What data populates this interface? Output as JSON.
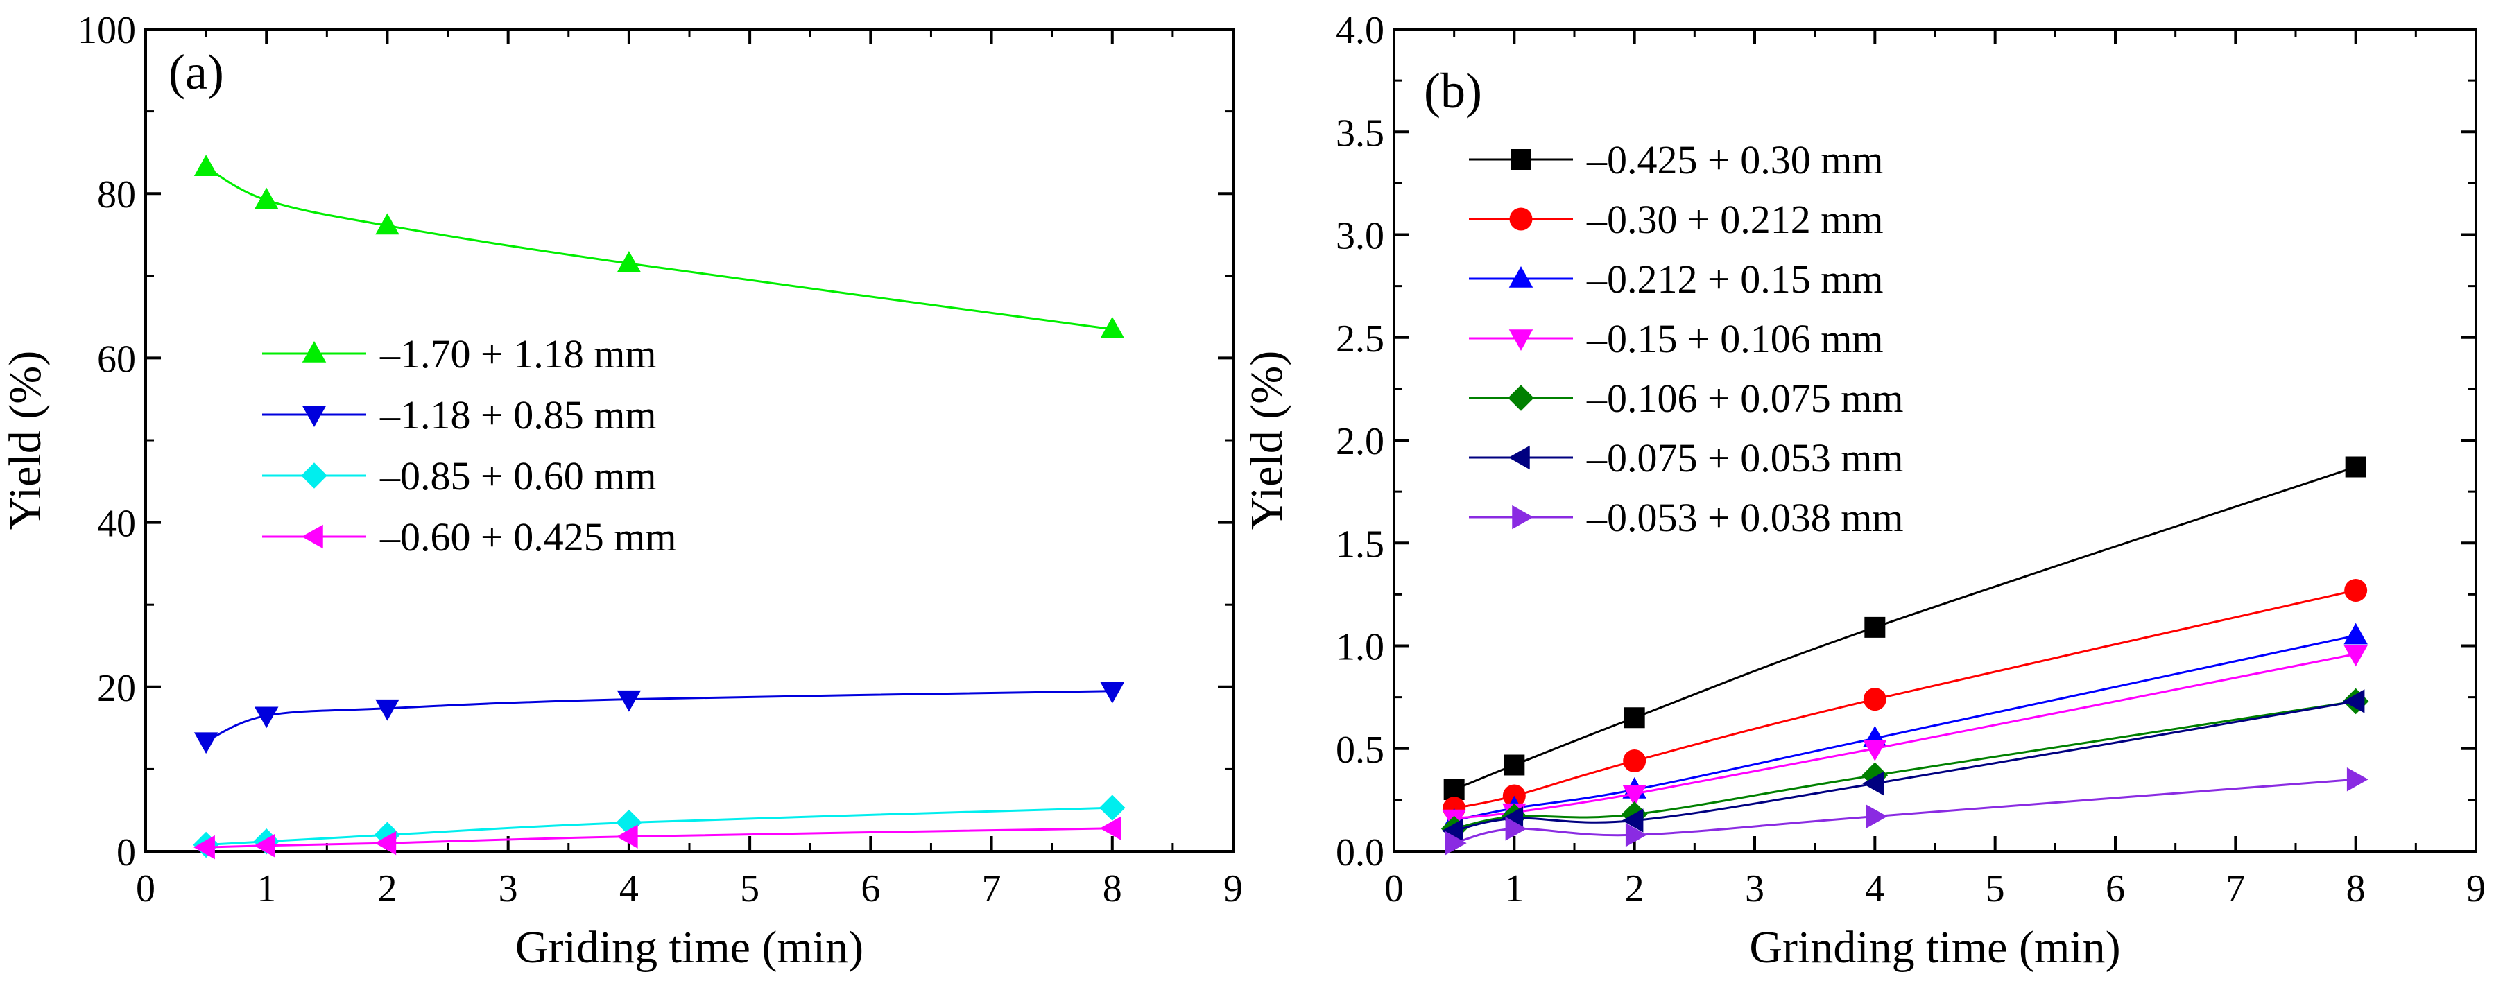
{
  "chart_data": [
    {
      "type": "line",
      "panel_label": "(a)",
      "xlabel": "Griding time (min)",
      "ylabel": "Yield (%)",
      "xlim": [
        0,
        9
      ],
      "ylim": [
        0,
        100
      ],
      "xticks": [
        0,
        1,
        2,
        3,
        4,
        5,
        6,
        7,
        8,
        9
      ],
      "yticks": [
        0,
        20,
        40,
        60,
        80,
        100
      ],
      "legend_position": "center-left",
      "series": [
        {
          "name": "–1.70 + 1.18 mm",
          "color": "#00ee00",
          "marker": "triangle-up",
          "x": [
            0.5,
            1,
            2,
            4,
            8
          ],
          "y": [
            83.2,
            79.2,
            76.1,
            71.5,
            63.5
          ]
        },
        {
          "name": "–1.18 + 0.85 mm",
          "color": "#0000dd",
          "marker": "triangle-down",
          "x": [
            0.5,
            1,
            2,
            4,
            8
          ],
          "y": [
            13.4,
            16.5,
            17.4,
            18.5,
            19.5
          ]
        },
        {
          "name": "–0.85 + 0.60 mm",
          "color": "#00eeee",
          "marker": "diamond",
          "x": [
            0.5,
            1,
            2,
            4,
            8
          ],
          "y": [
            0.8,
            1.2,
            2.0,
            3.5,
            5.3
          ]
        },
        {
          "name": "–0.60 + 0.425 mm",
          "color": "#ff00ff",
          "marker": "triangle-left",
          "x": [
            0.5,
            1,
            2,
            4,
            8
          ],
          "y": [
            0.5,
            0.7,
            1.0,
            1.8,
            2.8
          ]
        }
      ]
    },
    {
      "type": "line",
      "panel_label": "(b)",
      "xlabel": "Grinding time (min)",
      "ylabel": "Yield (%)",
      "xlim": [
        0,
        9
      ],
      "ylim": [
        0,
        4
      ],
      "xticks": [
        0,
        1,
        2,
        3,
        4,
        5,
        6,
        7,
        8,
        9
      ],
      "yticks": [
        0.0,
        0.5,
        1.0,
        1.5,
        2.0,
        2.5,
        3.0,
        3.5,
        4.0
      ],
      "legend_position": "top-left",
      "series": [
        {
          "name": "–0.425 + 0.30 mm",
          "color": "#000000",
          "marker": "square",
          "x": [
            0.5,
            1,
            2,
            4,
            8
          ],
          "y": [
            0.3,
            0.42,
            0.65,
            1.09,
            1.87
          ]
        },
        {
          "name": "–0.30 + 0.212 mm",
          "color": "#ff0000",
          "marker": "circle",
          "x": [
            0.5,
            1,
            2,
            4,
            8
          ],
          "y": [
            0.21,
            0.27,
            0.44,
            0.74,
            1.27
          ]
        },
        {
          "name": "–0.212 + 0.15 mm",
          "color": "#0000ff",
          "marker": "triangle-up",
          "x": [
            0.5,
            1,
            2,
            4,
            8
          ],
          "y": [
            0.15,
            0.21,
            0.3,
            0.55,
            1.05
          ]
        },
        {
          "name": "–0.15 + 0.106 mm",
          "color": "#ff00ff",
          "marker": "triangle-down",
          "x": [
            0.5,
            1,
            2,
            4,
            8
          ],
          "y": [
            0.16,
            0.19,
            0.28,
            0.5,
            0.96
          ]
        },
        {
          "name": "–0.106 + 0.075 mm",
          "color": "#008000",
          "marker": "diamond",
          "x": [
            0.5,
            1,
            2,
            4,
            8
          ],
          "y": [
            0.11,
            0.17,
            0.18,
            0.37,
            0.73
          ]
        },
        {
          "name": "–0.075 + 0.053 mm",
          "color": "#000080",
          "marker": "triangle-left",
          "x": [
            0.5,
            1,
            2,
            4,
            8
          ],
          "y": [
            0.1,
            0.16,
            0.15,
            0.33,
            0.73
          ]
        },
        {
          "name": "–0.053 + 0.038 mm",
          "color": "#8a2be2",
          "marker": "triangle-right",
          "x": [
            0.5,
            1,
            2,
            4,
            8
          ],
          "y": [
            0.04,
            0.11,
            0.08,
            0.17,
            0.35
          ]
        }
      ]
    }
  ]
}
